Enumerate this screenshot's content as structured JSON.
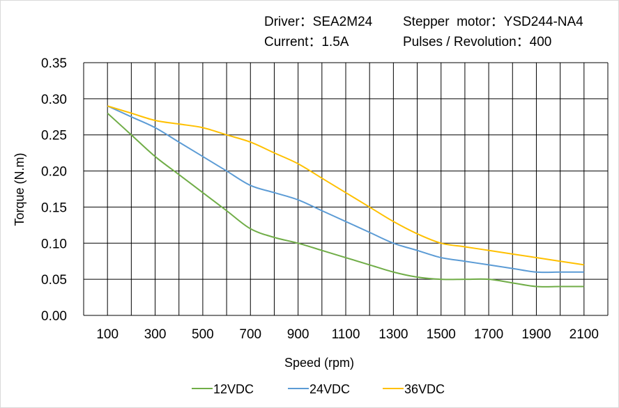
{
  "header": {
    "driver": "Driver：SEA2M24",
    "motor": "Stepper  motor：YSD244-NA4",
    "current": "Current：1.5A",
    "pulses": "Pulses / Revolution：400"
  },
  "chart_data": {
    "type": "line",
    "title": "",
    "xlabel": "Speed  (rpm)",
    "ylabel": "Torque (N.m)",
    "xlim": [
      0,
      2200
    ],
    "ylim": [
      0,
      0.35
    ],
    "grid": true,
    "legend_position": "bottom",
    "x_tick_labels": [
      "100",
      "300",
      "500",
      "700",
      "900",
      "1100",
      "1300",
      "1500",
      "1700",
      "1900",
      "2100"
    ],
    "y_tick_labels": [
      "0.00",
      "0.05",
      "0.10",
      "0.15",
      "0.20",
      "0.25",
      "0.30",
      "0.35"
    ],
    "x": [
      100,
      200,
      300,
      400,
      500,
      600,
      700,
      800,
      900,
      1000,
      1100,
      1200,
      1300,
      1400,
      1500,
      1600,
      1700,
      1800,
      1900,
      2000,
      2100
    ],
    "series": [
      {
        "name": "12VDC",
        "color": "#70ad47",
        "values": [
          0.28,
          0.25,
          0.22,
          0.195,
          0.17,
          0.145,
          0.12,
          0.108,
          0.1,
          0.09,
          0.08,
          0.07,
          0.06,
          0.053,
          0.05,
          0.05,
          0.05,
          0.045,
          0.04,
          0.04,
          0.04
        ]
      },
      {
        "name": "24VDC",
        "color": "#5b9bd5",
        "values": [
          0.29,
          0.275,
          0.26,
          0.24,
          0.22,
          0.2,
          0.18,
          0.17,
          0.16,
          0.145,
          0.13,
          0.115,
          0.1,
          0.09,
          0.08,
          0.075,
          0.07,
          0.065,
          0.06,
          0.06,
          0.06
        ]
      },
      {
        "name": "36VDC",
        "color": "#ffc000",
        "values": [
          0.29,
          0.28,
          0.27,
          0.265,
          0.26,
          0.25,
          0.24,
          0.225,
          0.21,
          0.19,
          0.17,
          0.15,
          0.13,
          0.113,
          0.1,
          0.095,
          0.09,
          0.085,
          0.08,
          0.075,
          0.07
        ]
      }
    ]
  }
}
